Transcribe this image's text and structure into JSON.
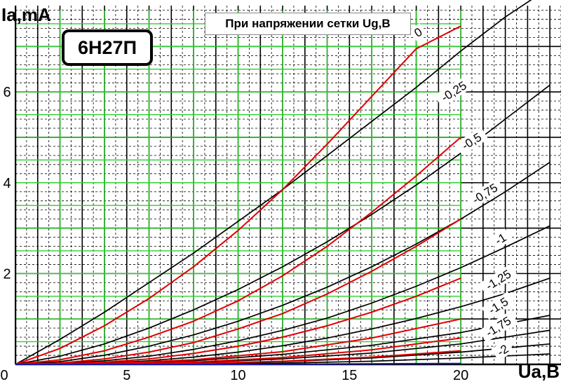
{
  "chart_data": {
    "type": "line",
    "title": "6Н27П",
    "subtitle": "При напряжении сетки Ug,В",
    "ylabel": "Ia,mA",
    "xlabel": "Ua,B",
    "xlim": [
      0,
      24.5
    ],
    "ylim": [
      0,
      7.9
    ],
    "xticks": [
      0,
      5,
      10,
      15,
      20
    ],
    "yticks": [
      2,
      4,
      6
    ],
    "grid": true,
    "series": [
      {
        "name": "0",
        "color": "#000000",
        "x": [
          0,
          2,
          4,
          6,
          8,
          10,
          12,
          14,
          16,
          18,
          20,
          22,
          24
        ],
        "y": [
          0,
          0.55,
          1.15,
          1.8,
          2.45,
          3.15,
          3.85,
          4.6,
          5.35,
          6.1,
          6.9,
          7.65,
          8.3
        ]
      },
      {
        "name": "-0,25",
        "color": "#000000",
        "x": [
          0,
          2,
          4,
          6,
          8,
          10,
          12,
          14,
          16,
          18,
          20,
          22,
          24
        ],
        "y": [
          0,
          0.18,
          0.45,
          0.8,
          1.2,
          1.65,
          2.15,
          2.7,
          3.3,
          3.95,
          4.65,
          5.4,
          6.15
        ]
      },
      {
        "name": "-0,5",
        "color": "#000000",
        "x": [
          0,
          2,
          4,
          6,
          8,
          10,
          12,
          14,
          16,
          18,
          20,
          22,
          24
        ],
        "y": [
          0,
          0.06,
          0.2,
          0.4,
          0.65,
          0.95,
          1.3,
          1.7,
          2.15,
          2.65,
          3.2,
          3.8,
          4.45
        ]
      },
      {
        "name": "-0,75",
        "color": "#000000",
        "x": [
          0,
          2,
          4,
          6,
          8,
          10,
          12,
          14,
          16,
          18,
          20,
          22,
          24
        ],
        "y": [
          0,
          0.02,
          0.08,
          0.18,
          0.33,
          0.52,
          0.75,
          1.02,
          1.35,
          1.72,
          2.13,
          2.58,
          3.05
        ]
      },
      {
        "name": "-1",
        "color": "#000000",
        "x": [
          0,
          2,
          4,
          6,
          8,
          10,
          12,
          14,
          16,
          18,
          20,
          22,
          24
        ],
        "y": [
          0,
          0.01,
          0.03,
          0.08,
          0.16,
          0.27,
          0.41,
          0.58,
          0.78,
          1.01,
          1.27,
          1.56,
          1.9
        ]
      },
      {
        "name": "-1,25",
        "color": "#000000",
        "x": [
          0,
          4,
          8,
          12,
          16,
          20,
          24
        ],
        "y": [
          0,
          0.02,
          0.08,
          0.22,
          0.42,
          0.7,
          1.08
        ]
      },
      {
        "name": "-1,5",
        "color": "#000000",
        "x": [
          0,
          4,
          8,
          12,
          16,
          20,
          24
        ],
        "y": [
          0,
          0.01,
          0.04,
          0.12,
          0.25,
          0.45,
          0.75
        ]
      },
      {
        "name": "-1,75",
        "color": "#000000",
        "x": [
          0,
          4,
          8,
          12,
          16,
          20,
          24
        ],
        "y": [
          0,
          0.0,
          0.02,
          0.06,
          0.14,
          0.27,
          0.45
        ]
      },
      {
        "name": "-2",
        "color": "#000000",
        "x": [
          0,
          4,
          8,
          12,
          16,
          20,
          24
        ],
        "y": [
          0,
          0.0,
          0.01,
          0.03,
          0.07,
          0.14,
          0.23
        ]
      },
      {
        "name": "",
        "color": "#e00000",
        "x": [
          0,
          2,
          4,
          6,
          8,
          10,
          12,
          14,
          16,
          18,
          20
        ],
        "y": [
          0,
          0.35,
          0.85,
          1.45,
          2.15,
          2.95,
          3.85,
          4.85,
          5.9,
          6.95,
          7.45
        ]
      },
      {
        "name": "",
        "color": "#e00000",
        "x": [
          0,
          2,
          4,
          6,
          8,
          10,
          12,
          14,
          16,
          18,
          20
        ],
        "y": [
          0,
          0.1,
          0.3,
          0.6,
          0.95,
          1.4,
          1.95,
          2.6,
          3.35,
          4.15,
          5.0
        ]
      },
      {
        "name": "",
        "color": "#e00000",
        "x": [
          0,
          2,
          4,
          6,
          8,
          10,
          12,
          14,
          16,
          18,
          20
        ],
        "y": [
          0,
          0.03,
          0.12,
          0.27,
          0.48,
          0.78,
          1.12,
          1.55,
          2.05,
          2.6,
          3.2
        ]
      },
      {
        "name": "",
        "color": "#e00000",
        "x": [
          0,
          2,
          4,
          6,
          8,
          10,
          12,
          14,
          16,
          18,
          20
        ],
        "y": [
          0,
          0.01,
          0.05,
          0.12,
          0.24,
          0.4,
          0.6,
          0.85,
          1.15,
          1.5,
          1.9
        ]
      },
      {
        "name": "",
        "color": "#e00000",
        "x": [
          0,
          4,
          8,
          12,
          16,
          20
        ],
        "y": [
          0,
          0.02,
          0.1,
          0.28,
          0.58,
          1.0
        ]
      },
      {
        "name": "",
        "color": "#e00000",
        "x": [
          0,
          4,
          8,
          12,
          16,
          20
        ],
        "y": [
          0,
          0.01,
          0.05,
          0.15,
          0.32,
          0.58
        ]
      },
      {
        "name": "",
        "color": "#e00000",
        "x": [
          0,
          4,
          8,
          12,
          16,
          20
        ],
        "y": [
          0,
          0.0,
          0.02,
          0.07,
          0.16,
          0.3
        ]
      },
      {
        "name": "",
        "color": "#1a1aa0",
        "x": [
          0,
          10,
          20
        ],
        "y": [
          0,
          0.0,
          0.02
        ]
      }
    ],
    "curve_labels": [
      {
        "text": "0",
        "x": 18.1,
        "y": 7.3
      },
      {
        "text": "-0,25",
        "x": 19.7,
        "y": 6.0
      },
      {
        "text": "-0,5",
        "x": 20.5,
        "y": 4.9
      },
      {
        "text": "-0,75",
        "x": 21.1,
        "y": 3.75
      },
      {
        "text": "-1",
        "x": 21.8,
        "y": 2.75
      },
      {
        "text": "-1,25",
        "x": 21.7,
        "y": 1.85
      },
      {
        "text": "-1,5",
        "x": 21.7,
        "y": 1.28
      },
      {
        "text": "-1,75",
        "x": 21.7,
        "y": 0.82
      },
      {
        "text": "-2",
        "x": 21.9,
        "y": 0.3
      }
    ]
  }
}
